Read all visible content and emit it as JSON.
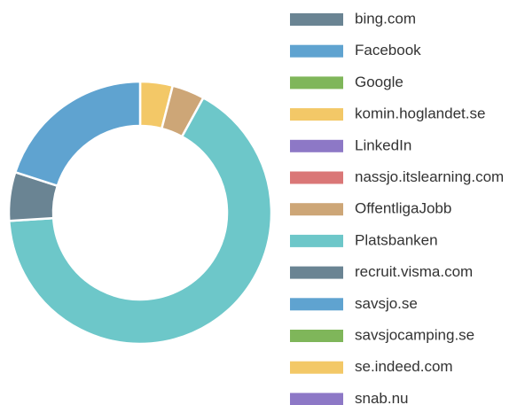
{
  "chart_data": {
    "type": "pie",
    "categories": [
      "bing.com",
      "Facebook",
      "Google",
      "komin.hoglandet.se",
      "LinkedIn",
      "nassjo.itslearning.com",
      "OffentligaJobb",
      "Platsbanken",
      "recruit.visma.com",
      "savsjo.se",
      "savsjocamping.se",
      "se.indeed.com",
      "snab.nu"
    ],
    "values": [
      0,
      0,
      0,
      4,
      0,
      0,
      4,
      66,
      6,
      20,
      0,
      0,
      0
    ],
    "colors": [
      "#6a8493",
      "#5fa3d0",
      "#7fb65a",
      "#f3c867",
      "#8d78c6",
      "#da7777",
      "#cda677",
      "#6dc7c9",
      "#6a8493",
      "#5fa3d0",
      "#7fb65a",
      "#f3c867",
      "#8d78c6"
    ],
    "donut": true
  }
}
